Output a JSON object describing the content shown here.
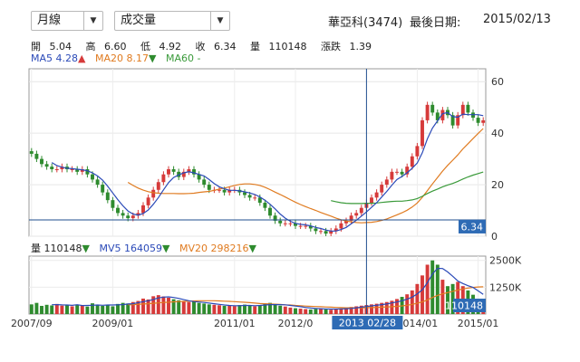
{
  "controls": {
    "period": "月線",
    "indicator": "成交量"
  },
  "header": {
    "stock": "華亞科(3474)",
    "last_date_label": "最後日期:",
    "last_date": "2015/02/13"
  },
  "quote": {
    "open_label": "開",
    "open": "5.04",
    "high_label": "高",
    "high": "6.60",
    "low_label": "低",
    "low": "4.92",
    "close_label": "收",
    "close": "6.34",
    "volume_label": "量",
    "volume": "110148",
    "change_label": "漲跌",
    "change": "1.39"
  },
  "ma_legend": {
    "ma5_label": "MA5",
    "ma5": "4.28",
    "ma20_label": "MA20",
    "ma20": "8.17",
    "ma60_label": "MA60",
    "ma60": "-"
  },
  "vol_legend": {
    "vol_label": "量",
    "vol": "110148",
    "mv5_label": "MV5",
    "mv5": "164059",
    "mv20_label": "MV20",
    "mv20": "298216"
  },
  "colors": {
    "up": "#d63a3a",
    "down": "#2e8b2e",
    "ma5": "#2b4ab8",
    "ma20": "#e07b20",
    "ma60": "#3a9a3a",
    "crosshair": "#1f4f8f",
    "tag": "#2e6bb5"
  },
  "crosshair": {
    "date_label": "2013 02/28",
    "price_tag": "6.34",
    "volume_tag": "110148"
  },
  "chart_data": {
    "type": "candlestick",
    "x_tick_labels": [
      "2007/09",
      "2009/01",
      "2011/01",
      "2012/0",
      "2014/01",
      "2015/01"
    ],
    "x_tick_months": [
      0,
      16,
      40,
      52,
      76,
      88
    ],
    "price_axis": {
      "ticks": [
        0,
        20,
        40,
        60
      ],
      "ylim": [
        0,
        65
      ]
    },
    "volume_axis": {
      "ticks": [
        "1250K",
        "2500K"
      ],
      "tick_values": [
        1250000,
        2500000
      ],
      "ylim": [
        0,
        2700000
      ]
    },
    "close": [
      32,
      30,
      28,
      27,
      26,
      26,
      27,
      26,
      26,
      25,
      26,
      24,
      22,
      20,
      17,
      14,
      11,
      9,
      8,
      7,
      8,
      9,
      12,
      15,
      18,
      21,
      24,
      26,
      25,
      23,
      25,
      26,
      24,
      22,
      20,
      18,
      18,
      18,
      17,
      18,
      18,
      17,
      16,
      15,
      15,
      13,
      11,
      8,
      6,
      5,
      5,
      5,
      4,
      4,
      4,
      3,
      2,
      2,
      1,
      2,
      3,
      5,
      6,
      8,
      9,
      11,
      13,
      15,
      17,
      20,
      22,
      25,
      25,
      24,
      27,
      31,
      35,
      45,
      51,
      48,
      45,
      49,
      47,
      43,
      47,
      51,
      48,
      46,
      44,
      45
    ],
    "ma5": [
      null,
      null,
      null,
      null,
      28.6,
      27.4,
      26.8,
      26.4,
      26.2,
      26,
      25.8,
      25.4,
      24.6,
      23.4,
      21.8,
      19.4,
      16.8,
      14.2,
      11.8,
      9.8,
      8.6,
      8.2,
      8.8,
      10.2,
      12.4,
      15,
      18,
      20.8,
      22.8,
      23.8,
      24.6,
      25,
      24.6,
      24,
      23.4,
      22,
      20.4,
      19.2,
      18.4,
      17.8,
      17.8,
      17.6,
      17.2,
      16.8,
      16.2,
      15.2,
      14,
      12.4,
      10.6,
      8.6,
      7,
      5.8,
      5,
      4.6,
      4.4,
      4,
      3.4,
      3,
      2.4,
      2,
      2,
      2.6,
      3.4,
      4.8,
      6.2,
      7.8,
      9.4,
      11.2,
      13,
      15.2,
      17.4,
      19.8,
      22,
      23.2,
      24.6,
      26.4,
      28.4,
      32.4,
      37.8,
      42,
      44.8,
      47.6,
      48,
      46.4,
      46.2,
      47.4,
      47.2,
      47.2,
      47.2,
      46.8
    ],
    "ma20": [
      null,
      null,
      null,
      null,
      null,
      null,
      null,
      null,
      null,
      null,
      null,
      null,
      null,
      null,
      null,
      null,
      null,
      null,
      null,
      20.9,
      19.7,
      18.7,
      17.9,
      17.3,
      16.9,
      16.7,
      16.6,
      16.6,
      16.6,
      16.5,
      16.5,
      16.6,
      16.7,
      17,
      17.2,
      17.4,
      17.8,
      18.3,
      18.7,
      19.2,
      19.7,
      20.1,
      20.3,
      20.3,
      20.1,
      19.7,
      19,
      18.1,
      17.1,
      16.2,
      15.2,
      14.2,
      13.2,
      12.3,
      11.5,
      10.7,
      10,
      9.2,
      8.5,
      7.8,
      7,
      6.4,
      5.9,
      5.6,
      5.3,
      5.2,
      5.3,
      5.4,
      5.7,
      6.1,
      6.7,
      7.5,
      8.3,
      9.1,
      10.1,
      11.3,
      12.9,
      15.1,
      17.7,
      20.3,
      22.8,
      25.3,
      27.5,
      29.5,
      31.6,
      33.9,
      35.9,
      37.9,
      39.9,
      41.8
    ],
    "ma60": [
      null,
      null,
      null,
      null,
      null,
      null,
      null,
      null,
      null,
      null,
      null,
      null,
      null,
      null,
      null,
      null,
      null,
      null,
      null,
      null,
      null,
      null,
      null,
      null,
      null,
      null,
      null,
      null,
      null,
      null,
      null,
      null,
      null,
      null,
      null,
      null,
      null,
      null,
      null,
      null,
      null,
      null,
      null,
      null,
      null,
      null,
      null,
      null,
      null,
      null,
      null,
      null,
      null,
      null,
      null,
      null,
      null,
      null,
      null,
      13.8,
      13.4,
      13,
      12.8,
      12.7,
      12.7,
      12.7,
      12.8,
      12.8,
      12.9,
      13.1,
      13.3,
      13.5,
      13.6,
      13.6,
      13.8,
      14.1,
      14.6,
      15.5,
      16.6,
      17.5,
      18.3,
      19.2,
      19.9,
      20.5,
      21.3,
      22.2,
      23,
      23.7,
      24.3,
      24.9
    ],
    "volume": [
      450000,
      520000,
      380000,
      430000,
      400000,
      470000,
      390000,
      410000,
      360000,
      440000,
      380000,
      350000,
      500000,
      420000,
      380000,
      430000,
      360000,
      470000,
      520000,
      490000,
      560000,
      610000,
      720000,
      680000,
      830000,
      880000,
      820000,
      760000,
      690000,
      640000,
      590000,
      560000,
      600000,
      520000,
      490000,
      450000,
      430000,
      410000,
      380000,
      400000,
      370000,
      420000,
      440000,
      390000,
      360000,
      410000,
      470000,
      520000,
      430000,
      390000,
      350000,
      300000,
      270000,
      250000,
      230000,
      210000,
      240000,
      260000,
      220000,
      200000,
      230000,
      260000,
      290000,
      330000,
      360000,
      390000,
      420000,
      450000,
      480000,
      520000,
      560000,
      620000,
      700000,
      800000,
      920000,
      1100000,
      1400000,
      1800000,
      2300000,
      2500000,
      2300000,
      1600000,
      1300000,
      1400000,
      1500000,
      1300000,
      1100000,
      900000,
      700000,
      600000
    ],
    "mv5": [
      null,
      null,
      null,
      null,
      436000,
      440000,
      426000,
      420000,
      406000,
      434000,
      396000,
      400000,
      410000,
      420000,
      410000,
      420000,
      420000,
      430000,
      440000,
      470000,
      480000,
      530000,
      580000,
      620000,
      680000,
      750000,
      790000,
      800000,
      770000,
      730000,
      670000,
      620000,
      580000,
      560000,
      540000,
      510000,
      480000,
      450000,
      420000,
      400000,
      390000,
      390000,
      400000,
      400000,
      390000,
      400000,
      420000,
      440000,
      440000,
      440000,
      430000,
      400000,
      370000,
      340000,
      310000,
      280000,
      260000,
      250000,
      240000,
      230000,
      230000,
      240000,
      250000,
      260000,
      290000,
      320000,
      350000,
      380000,
      410000,
      440000,
      470000,
      520000,
      560000,
      620000,
      690000,
      790000,
      940000,
      1130000,
      1460000,
      1870000,
      2130000,
      2120000,
      1960000,
      1760000,
      1540000,
      1420000,
      1320000,
      1240000,
      1080000,
      920000
    ],
    "mv20": [
      null,
      null,
      null,
      null,
      null,
      null,
      null,
      null,
      null,
      null,
      null,
      null,
      null,
      null,
      null,
      null,
      null,
      null,
      null,
      430000,
      440000,
      450000,
      470000,
      480000,
      500000,
      520000,
      540000,
      550000,
      570000,
      580000,
      590000,
      600000,
      610000,
      620000,
      620000,
      620000,
      620000,
      610000,
      600000,
      590000,
      580000,
      560000,
      550000,
      530000,
      510000,
      490000,
      480000,
      470000,
      460000,
      450000,
      430000,
      420000,
      400000,
      390000,
      370000,
      360000,
      350000,
      340000,
      330000,
      320000,
      310000,
      300000,
      290000,
      290000,
      290000,
      290000,
      300000,
      300000,
      310000,
      320000,
      330000,
      340000,
      360000,
      380000,
      410000,
      450000,
      500000,
      570000,
      660000,
      770000,
      870000,
      940000,
      1000000,
      1060000,
      1120000,
      1170000,
      1210000,
      1240000,
      1260000,
      1270000
    ]
  }
}
